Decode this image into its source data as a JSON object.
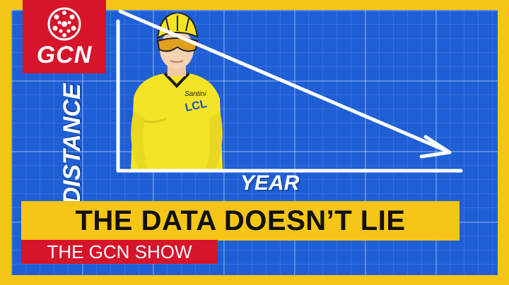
{
  "brand": {
    "logo_text": "GCN"
  },
  "graph": {
    "y_axis_label": "DISTANCE",
    "x_axis_label": "YEAR"
  },
  "headline": "THE DATA DOESN’T LIE",
  "show_name": "THE GCN SHOW",
  "jersey_text": {
    "sponsor_1": "LCL",
    "sponsor_2": "Santini"
  },
  "colors": {
    "frame_yellow": "#f5c518",
    "board_blue": "#1f5fd6",
    "brand_red": "#d6142a",
    "jersey_yellow": "#f4e426"
  }
}
